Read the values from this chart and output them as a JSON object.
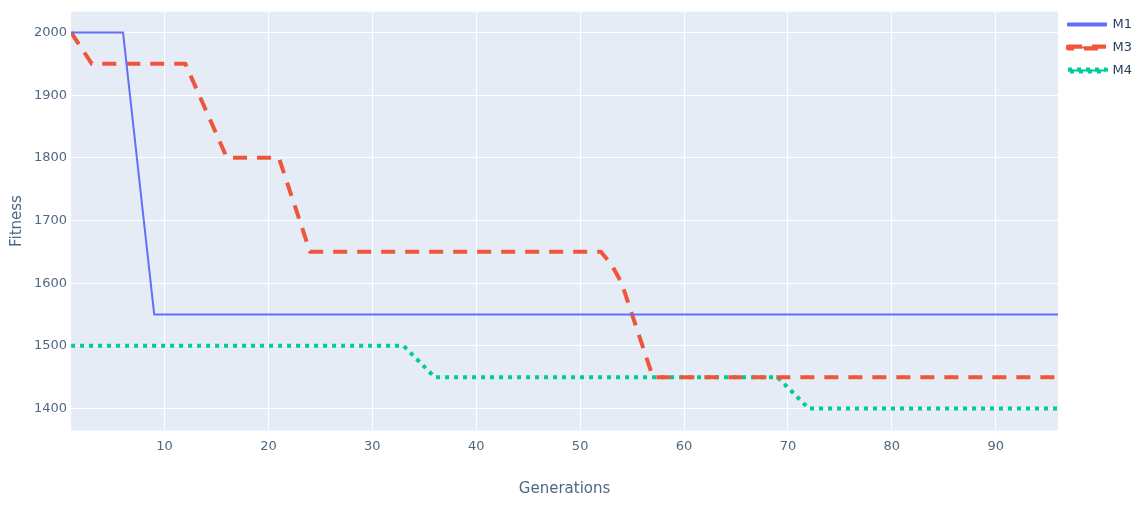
{
  "chart_data": {
    "type": "line",
    "xlabel": "Generations",
    "ylabel": "Fitness",
    "xlim": [
      1,
      96
    ],
    "ylim": [
      1365,
      2033
    ],
    "xticks": [
      10,
      20,
      30,
      40,
      50,
      60,
      70,
      80,
      90
    ],
    "yticks": [
      1400,
      1500,
      1600,
      1700,
      1800,
      1900,
      2000
    ],
    "grid": true,
    "legend": "top right",
    "marker": "none",
    "series": [
      {
        "name": "M1",
        "color": "#636efa",
        "line_style": "solid",
        "x": [
          1,
          6,
          9,
          96
        ],
        "values": [
          2000,
          2000,
          1550,
          1550
        ]
      },
      {
        "name": "M3",
        "color": "#ef553b",
        "line_style": "dashed",
        "x": [
          1,
          3,
          12,
          16,
          21,
          24,
          52,
          53,
          54,
          57,
          96
        ],
        "values": [
          2000,
          1950,
          1950,
          1800,
          1800,
          1650,
          1650,
          1630,
          1600,
          1450,
          1450
        ]
      },
      {
        "name": "M4",
        "color": "#00cc96",
        "line_style": "dotted",
        "x": [
          1,
          33,
          36,
          69,
          72,
          96
        ],
        "values": [
          1500,
          1500,
          1450,
          1450,
          1400,
          1400
        ]
      }
    ]
  }
}
